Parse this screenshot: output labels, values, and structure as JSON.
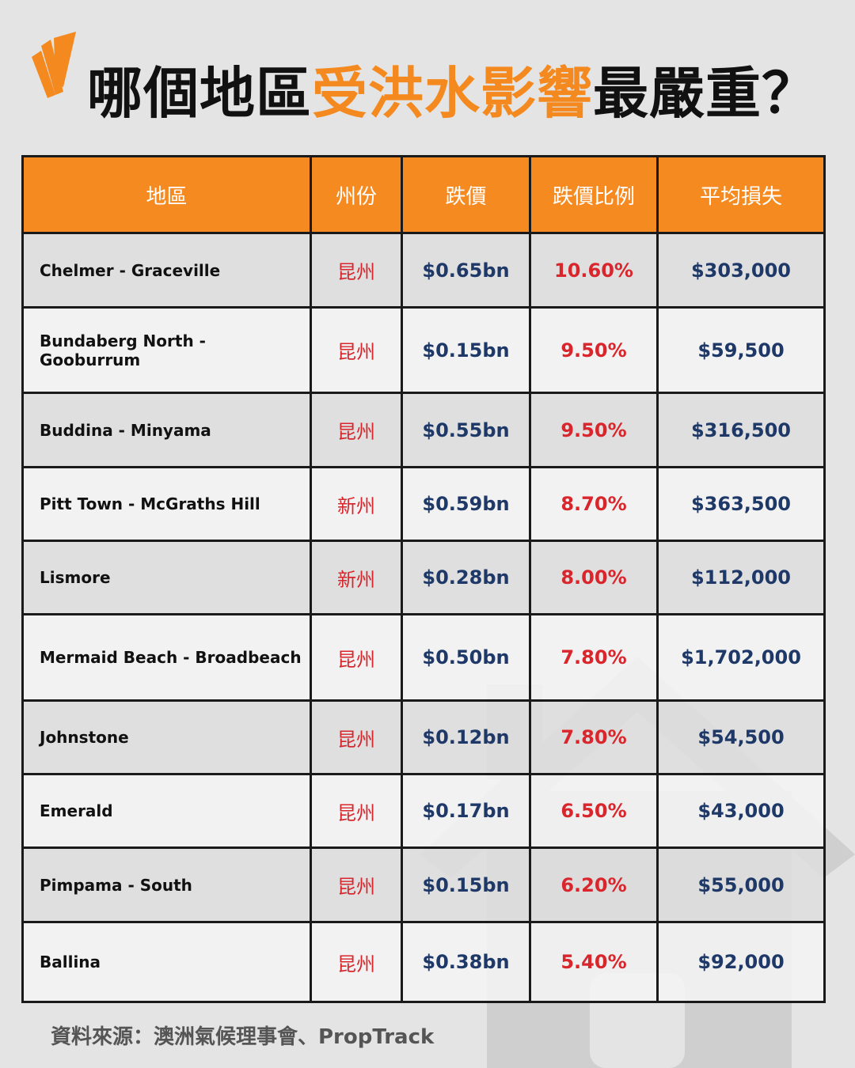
{
  "header": {
    "title": [
      "哪個地區",
      "受洪水影響",
      "最嚴重？"
    ]
  },
  "table": {
    "columns": [
      "地區",
      "州份",
      "跌價",
      "跌價比例",
      "平均損失"
    ],
    "rows": [
      [
        "Chelmer - Graceville",
        "昆州",
        "$0.65bn",
        "10.60%",
        "$303,000"
      ],
      [
        "Bundaberg North - Gooburrum",
        "昆州",
        "$0.15bn",
        "9.50%",
        "$59,500"
      ],
      [
        "Buddina - Minyama",
        "昆州",
        "$0.55bn",
        "9.50%",
        "$316,500"
      ],
      [
        "Pitt Town - McGraths Hill",
        "新州",
        "$0.59bn",
        "8.70%",
        "$363,500"
      ],
      [
        "Lismore",
        "新州",
        "$0.28bn",
        "8.00%",
        "$112,000"
      ],
      [
        "Mermaid Beach - Broadbeach",
        "昆州",
        "$0.50bn",
        "7.80%",
        "$1,702,000"
      ],
      [
        "Johnstone",
        "昆州",
        "$0.12bn",
        "7.80%",
        "$54,500"
      ],
      [
        "Emerald",
        "昆州",
        "$0.17bn",
        "6.50%",
        "$43,000"
      ],
      [
        "Pimpama - South",
        "昆州",
        "$0.15bn",
        "6.20%",
        "$55,000"
      ],
      [
        "Ballina",
        "昆州",
        "$0.38bn",
        "5.40%",
        "$92,000"
      ]
    ]
  },
  "footer": {
    "source": "資料來源：澳洲氣候理事會、PropTrack"
  }
}
